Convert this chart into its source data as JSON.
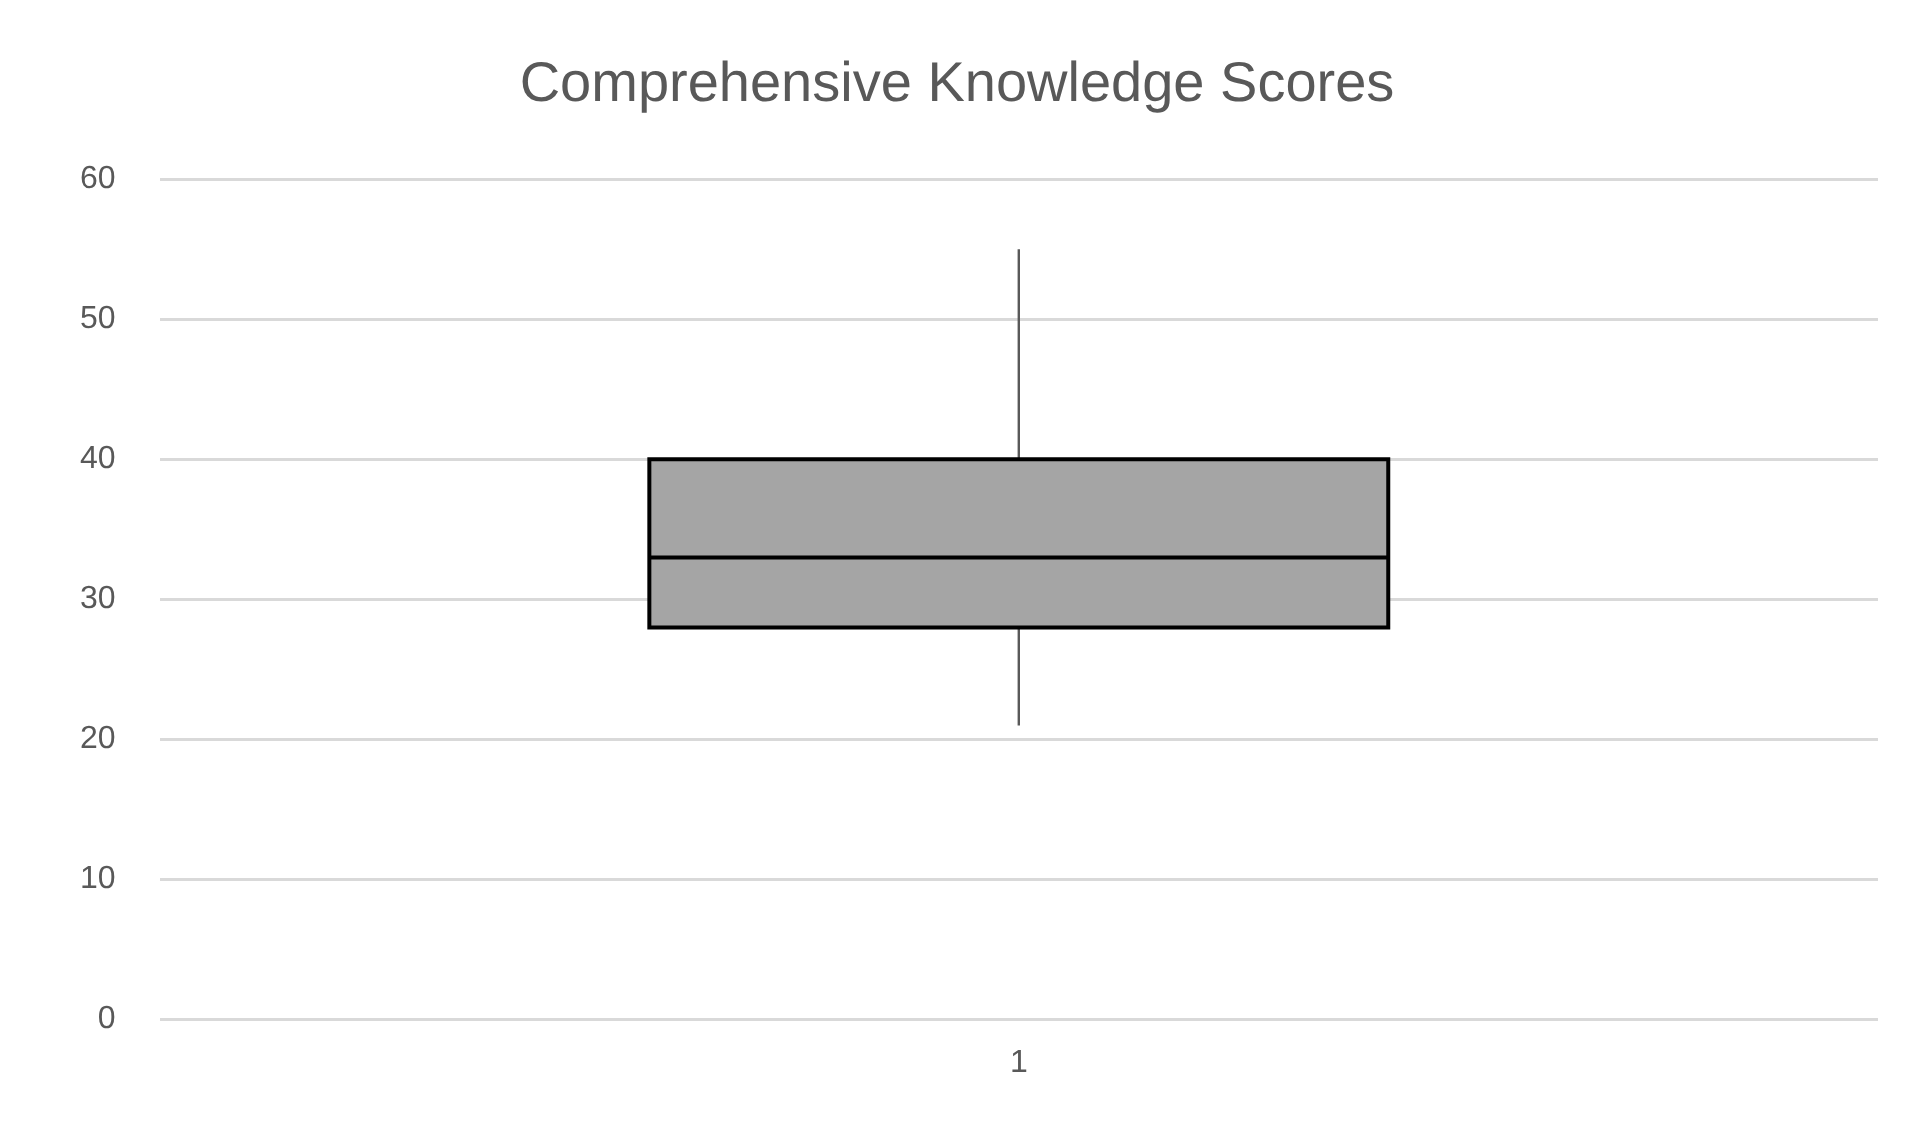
{
  "chart_data": {
    "type": "box",
    "title": "Comprehensive Knowledge Scores",
    "categories": [
      "1"
    ],
    "boxes": [
      {
        "low": 21,
        "q1": 28,
        "median": 33,
        "q3": 40,
        "high": 55
      }
    ],
    "color": "#a5a5a5",
    "ylim": [
      0,
      60
    ],
    "yticks": [
      0,
      10,
      20,
      30,
      40,
      50,
      60
    ],
    "grid": "y",
    "legend": false
  }
}
